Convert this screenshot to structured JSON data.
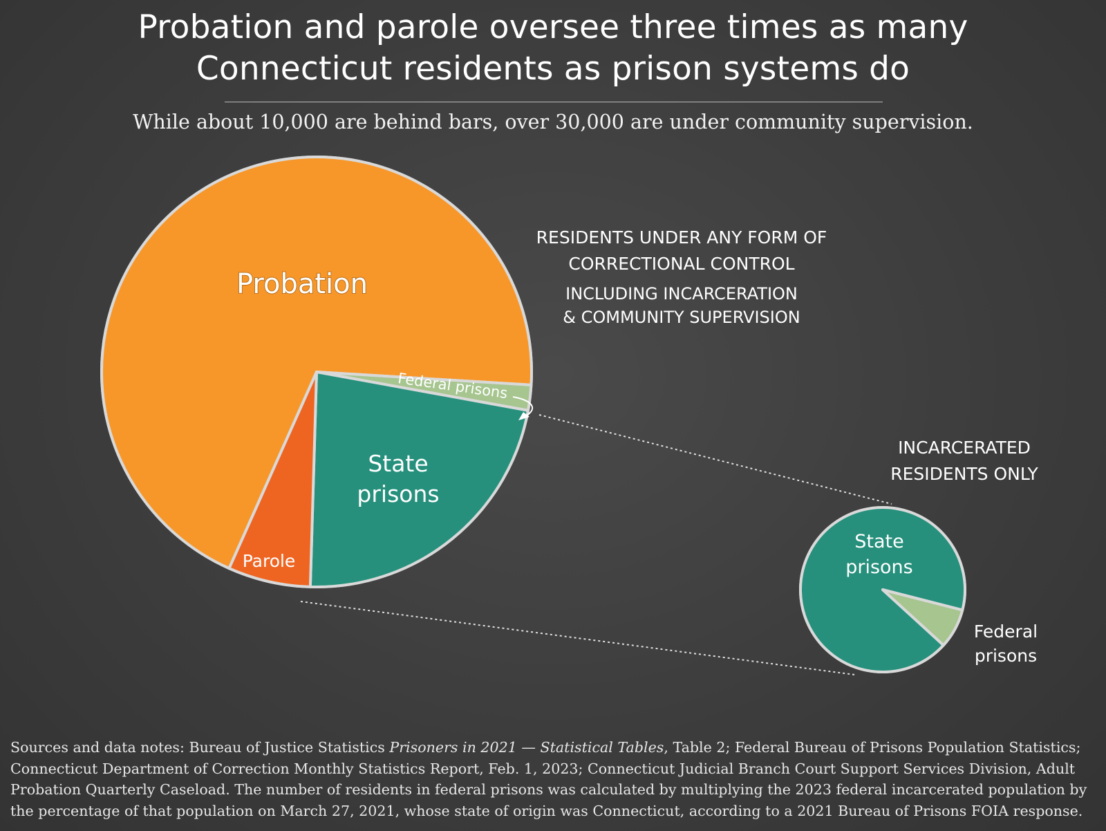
{
  "header": {
    "title_line1": "Probation and parole oversee three times as many",
    "title_line2": "Connecticut residents as prison systems do",
    "subtitle": "While about 10,000 are behind bars, over 30,000 are under community supervision."
  },
  "chart_data": [
    {
      "type": "pie",
      "title_line1": "RESIDENTS UNDER ANY FORM OF",
      "title_line2": "CORRECTIONAL CONTROL",
      "subtitle_line1": "INCLUDING INCARCERATION",
      "subtitle_line2": "& COMMUNITY SUPERVISION",
      "slices": [
        {
          "label": "Probation",
          "value": 69.3,
          "color": "#f7972a"
        },
        {
          "label": "Federal prisons",
          "value": 1.9,
          "color": "#a6c58f"
        },
        {
          "label": "State prisons",
          "value": 22.6,
          "color": "#26907c"
        },
        {
          "label": "Parole",
          "value": 6.2,
          "color": "#ee6421"
        }
      ],
      "labels": {
        "probation": "Probation",
        "federal": "Federal prisons",
        "state_line1": "State",
        "state_line2": "prisons",
        "parole": "Parole"
      }
    },
    {
      "type": "pie",
      "title_line1": "INCARCERATED",
      "title_line2": "RESIDENTS ONLY",
      "slices": [
        {
          "label": "State prisons",
          "value": 92.2,
          "color": "#26907c"
        },
        {
          "label": "Federal prisons",
          "value": 7.8,
          "color": "#a6c58f"
        }
      ],
      "labels": {
        "state_line1": "State",
        "state_line2": "prisons",
        "federal_line1": "Federal",
        "federal_line2": "prisons"
      }
    }
  ],
  "notes": {
    "prefix": "Sources and data notes: Bureau of Justice Statistics ",
    "italic": "Prisoners in 2021 — Statistical Tables",
    "rest": ", Table 2; Federal Bureau of Prisons Population Statistics; Connecticut Department of Correction Monthly Statistics Report, Feb. 1, 2023; Connecticut Judicial Branch Court Support Services Division, Adult Probation Quarterly Caseload. The number of residents in federal prisons was calculated by multiplying the 2023 federal incarcerated population by the percentage of that population on March 27, 2021, whose state of origin was Connecticut, according to a 2021 Bureau of Prisons FOIA response."
  }
}
